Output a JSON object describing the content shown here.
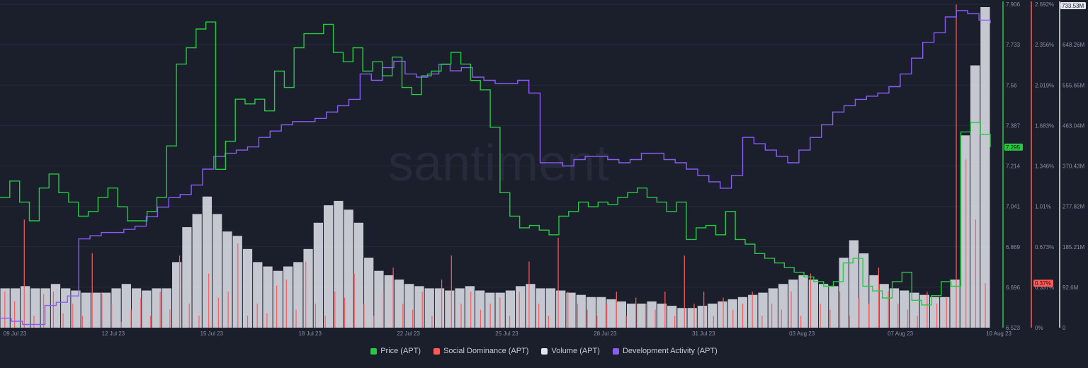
{
  "watermark": "santiment",
  "chart_data": {
    "type": "line",
    "x_labels": [
      "09 Jul 23",
      "12 Jul 23",
      "15 Jul 23",
      "18 Jul 23",
      "22 Jul 23",
      "25 Jul 23",
      "28 Jul 23",
      "31 Jul 23",
      "03 Aug 23",
      "07 Aug 23",
      "10 Aug 23"
    ],
    "axes": {
      "price": {
        "ticks": [
          "7.906",
          "7.733",
          "7.56",
          "7.387",
          "7.214",
          "7.041",
          "6.869",
          "6.696",
          "6.523"
        ],
        "range": [
          6.523,
          7.906
        ],
        "current": "7.295",
        "color": "#26c941"
      },
      "social_dominance": {
        "ticks": [
          "2.692%",
          "2.356%",
          "2.019%",
          "1.683%",
          "1.346%",
          "1.01%",
          "0.673%",
          "0.337%",
          "0%"
        ],
        "range": [
          0,
          2.692
        ],
        "current": "0.37%",
        "color": "#ff5b5b"
      },
      "volume": {
        "ticks": [
          "733.53M",
          "648.26M",
          "555.65M",
          "463.04M",
          "370.43M",
          "277.82M",
          "185.21M",
          "92.6M",
          "0"
        ],
        "range": [
          0,
          740
        ],
        "current": "733.53M",
        "color": "#e4e6ee"
      },
      "dev_activity": {
        "color": "#8a5cf6"
      }
    },
    "series": [
      {
        "name": "Price (APT)",
        "axis": "price",
        "color": "#26c941",
        "values": [
          7.08,
          7.15,
          7.06,
          6.98,
          7.12,
          7.18,
          7.1,
          7.06,
          7.0,
          7.02,
          7.08,
          7.12,
          7.04,
          6.98,
          6.98,
          7.02,
          7.08,
          7.3,
          7.65,
          7.72,
          7.8,
          7.83,
          7.2,
          7.32,
          7.5,
          7.48,
          7.5,
          7.45,
          7.62,
          7.55,
          7.72,
          7.78,
          7.78,
          7.82,
          7.7,
          7.66,
          7.72,
          7.62,
          7.66,
          7.6,
          7.68,
          7.55,
          7.52,
          7.6,
          7.62,
          7.65,
          7.7,
          7.65,
          7.58,
          7.54,
          7.38,
          7.1,
          7.0,
          6.95,
          6.96,
          6.94,
          6.92,
          7.0,
          7.02,
          7.06,
          7.04,
          7.06,
          7.05,
          7.08,
          7.1,
          7.12,
          7.08,
          7.06,
          7.02,
          7.06,
          6.9,
          6.95,
          6.96,
          6.92,
          7.02,
          6.9,
          6.88,
          6.84,
          6.82,
          6.8,
          6.78,
          6.76,
          6.74,
          6.72,
          6.7,
          6.72,
          6.8,
          6.82,
          6.7,
          6.68,
          6.65,
          6.72,
          6.76,
          6.64,
          6.62,
          6.66,
          6.72,
          6.7,
          7.36,
          7.4,
          7.35,
          7.295
        ]
      },
      {
        "name": "Social Dominance (APT)",
        "axis": "social_dominance",
        "color": "#ff5b5b",
        "values": [
          0.3,
          0.22,
          0.9,
          0.1,
          0.28,
          0.3,
          0.12,
          0.2,
          0.1,
          0.62,
          0.28,
          0.2,
          0.05,
          0.15,
          0.25,
          0.1,
          0.3,
          0.15,
          0.6,
          0.2,
          0.1,
          0.45,
          0.25,
          0.3,
          0.7,
          0.1,
          0.2,
          0.12,
          0.35,
          0.4,
          0.15,
          0.55,
          0.2,
          0.1,
          0.3,
          0.25,
          0.45,
          0.2,
          0.1,
          0.3,
          0.5,
          0.2,
          0.15,
          0.3,
          0.1,
          0.4,
          0.6,
          0.2,
          0.3,
          0.15,
          0.2,
          0.25,
          0.1,
          0.3,
          0.55,
          0.2,
          0.1,
          0.75,
          0.3,
          0.2,
          0.15,
          0.1,
          0.2,
          0.3,
          0.1,
          0.25,
          0.2,
          0.15,
          0.3,
          0.1,
          0.6,
          0.2,
          0.3,
          0.1,
          0.25,
          0.15,
          0.2,
          0.3,
          0.1,
          0.2,
          0.15,
          0.3,
          0.1,
          0.45,
          0.2,
          0.15,
          0.3,
          0.1,
          0.25,
          0.2,
          0.5,
          0.3,
          0.2,
          0.15,
          0.1,
          0.3,
          0.2,
          0.25,
          2.69,
          1.4,
          0.9,
          0.37
        ]
      },
      {
        "name": "Volume (APT)",
        "axis": "volume",
        "color": "#e4e6ee",
        "values": [
          90,
          90,
          95,
          90,
          90,
          100,
          90,
          85,
          80,
          80,
          80,
          90,
          100,
          90,
          85,
          90,
          90,
          150,
          230,
          260,
          300,
          260,
          220,
          210,
          180,
          150,
          140,
          130,
          140,
          150,
          180,
          240,
          280,
          290,
          270,
          240,
          160,
          130,
          120,
          110,
          100,
          95,
          90,
          90,
          85,
          90,
          95,
          85,
          80,
          80,
          85,
          95,
          100,
          90,
          90,
          85,
          80,
          75,
          70,
          70,
          65,
          60,
          55,
          55,
          60,
          55,
          50,
          45,
          45,
          50,
          55,
          60,
          65,
          70,
          75,
          80,
          90,
          100,
          110,
          120,
          110,
          100,
          95,
          160,
          200,
          170,
          120,
          100,
          90,
          85,
          80,
          75,
          70,
          70,
          110,
          440,
          600,
          733.53
        ]
      },
      {
        "name": "Development Activity (APT)",
        "axis": "dev_activity",
        "color": "#8a5cf6",
        "values": [
          0.03,
          0.02,
          0.01,
          0.01,
          0.07,
          0.08,
          0.1,
          0.28,
          0.29,
          0.3,
          0.3,
          0.31,
          0.32,
          0.35,
          0.38,
          0.41,
          0.42,
          0.45,
          0.5,
          0.54,
          0.55,
          0.56,
          0.57,
          0.6,
          0.62,
          0.64,
          0.65,
          0.65,
          0.66,
          0.68,
          0.7,
          0.72,
          0.8,
          0.78,
          0.82,
          0.84,
          0.8,
          0.79,
          0.8,
          0.83,
          0.81,
          0.82,
          0.79,
          0.78,
          0.77,
          0.77,
          0.78,
          0.74,
          0.52,
          0.52,
          0.51,
          0.53,
          0.54,
          0.54,
          0.53,
          0.52,
          0.53,
          0.55,
          0.55,
          0.53,
          0.52,
          0.5,
          0.48,
          0.46,
          0.44,
          0.48,
          0.6,
          0.58,
          0.56,
          0.54,
          0.52,
          0.56,
          0.6,
          0.64,
          0.68,
          0.7,
          0.72,
          0.73,
          0.74,
          0.76,
          0.8,
          0.85,
          0.9,
          0.93,
          0.98,
          1.0,
          0.99,
          0.97,
          0.96
        ]
      }
    ],
    "legend": [
      {
        "label": "Price (APT)",
        "color": "#26c941"
      },
      {
        "label": "Social Dominance (APT)",
        "color": "#ff5b5b"
      },
      {
        "label": "Volume (APT)",
        "color": "#e4e6ee"
      },
      {
        "label": "Development Activity (APT)",
        "color": "#8a5cf6"
      }
    ],
    "legend_position": "bottom",
    "grid": true
  }
}
